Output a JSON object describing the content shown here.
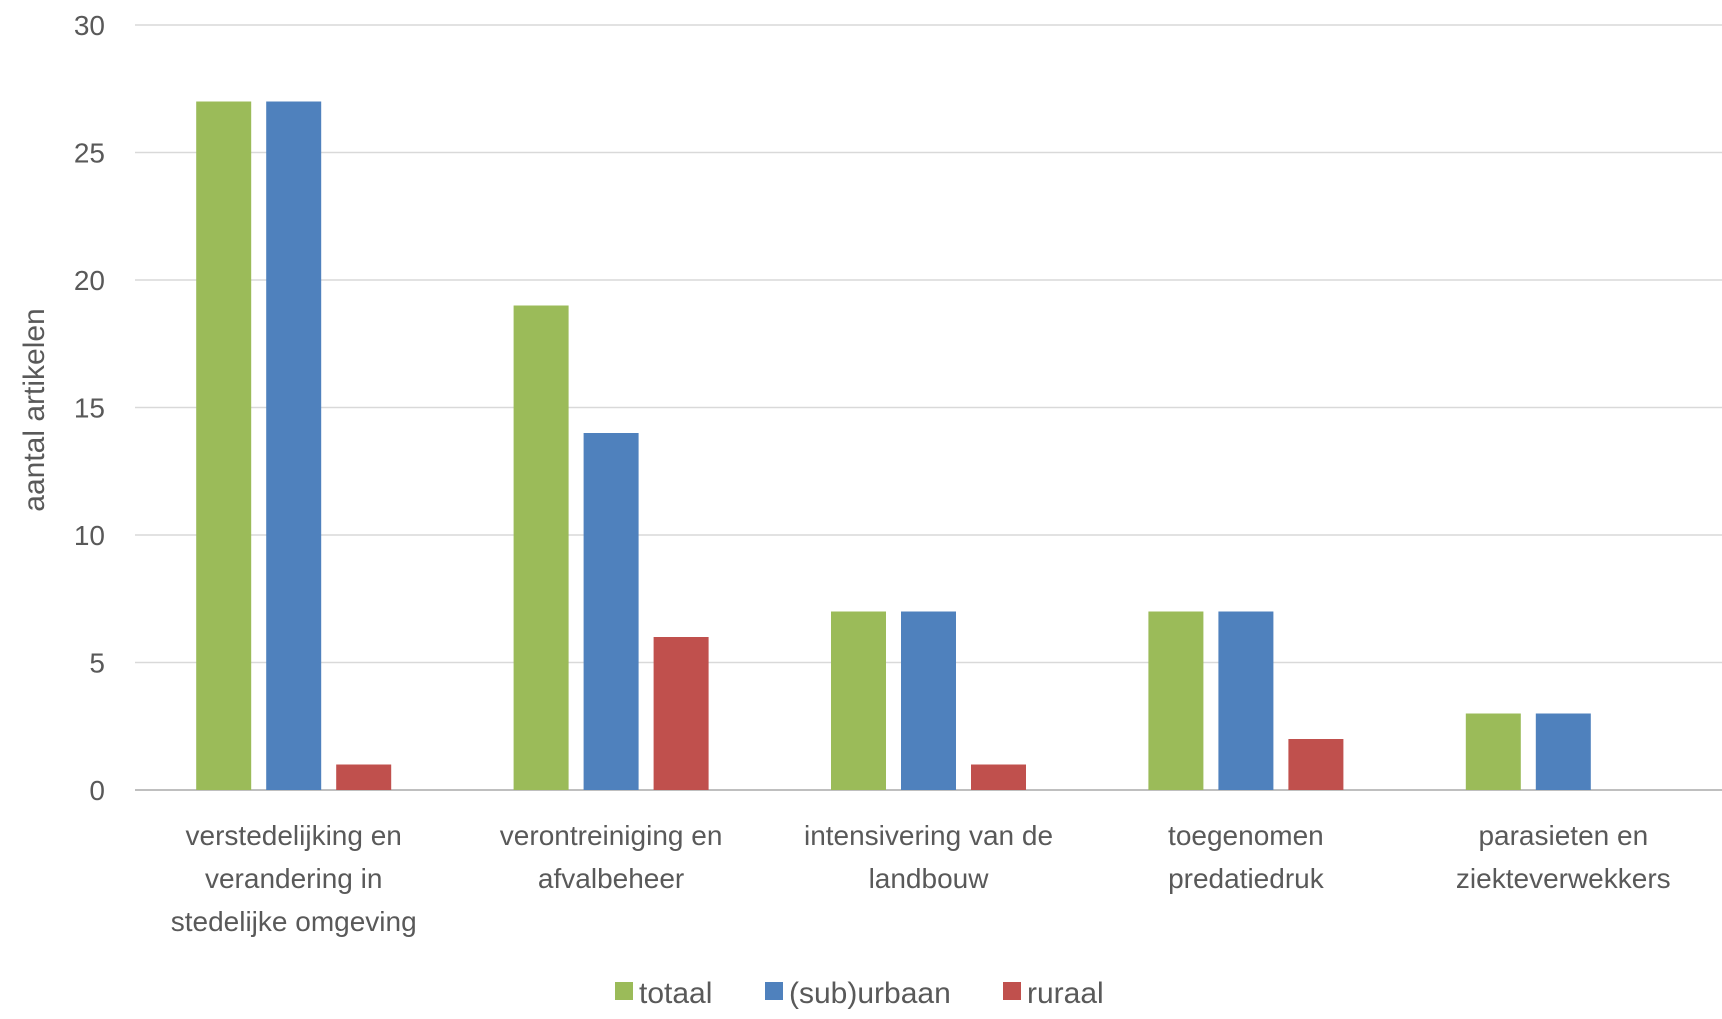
{
  "chart_data": {
    "type": "bar",
    "categories": [
      [
        "verstedelijking en",
        "verandering in",
        "stedelijke omgeving"
      ],
      [
        "verontreiniging en",
        "afvalbeheer"
      ],
      [
        "intensivering van de",
        "landbouw"
      ],
      [
        "toegenomen",
        "predatiedruk"
      ],
      [
        "parasieten en",
        "ziekteverwekkers"
      ]
    ],
    "series": [
      {
        "name": "totaal",
        "color": "#9bbb59",
        "values": [
          27,
          19,
          7,
          7,
          3
        ]
      },
      {
        "name": "(sub)urbaan",
        "color": "#4f81bd",
        "values": [
          27,
          14,
          7,
          7,
          3
        ]
      },
      {
        "name": "ruraal",
        "color": "#c0504d",
        "values": [
          1,
          6,
          1,
          2,
          0
        ]
      }
    ],
    "title": "",
    "xlabel": "",
    "ylabel": "aantal artikelen",
    "ylim": [
      0,
      30
    ],
    "yticks": [
      "0",
      "5",
      "10",
      "15",
      "20",
      "25",
      "30"
    ],
    "grid": true,
    "legend_position": "bottom"
  }
}
